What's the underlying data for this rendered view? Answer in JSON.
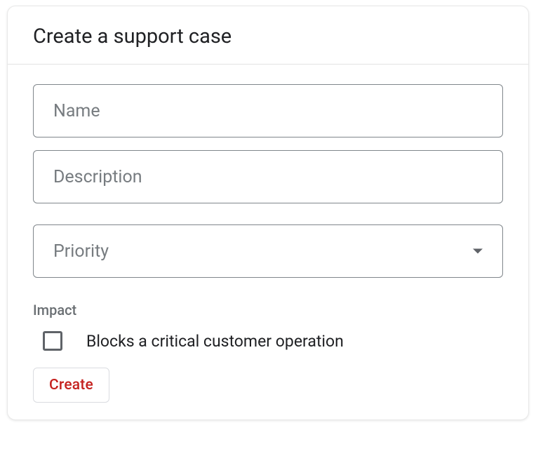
{
  "header": {
    "title": "Create a support case"
  },
  "form": {
    "name": {
      "placeholder": "Name",
      "value": ""
    },
    "description": {
      "placeholder": "Description",
      "value": ""
    },
    "priority": {
      "placeholder": "Priority",
      "selected": ""
    },
    "impact": {
      "section_label": "Impact",
      "checkbox_label": "Blocks a critical customer operation",
      "checked": false
    },
    "submit_label": "Create"
  },
  "colors": {
    "border": "#80868b",
    "placeholder": "#777c80",
    "text": "#202124",
    "section_label": "#6a6f73",
    "button_text": "#c5221f",
    "divider": "#e3e3e3",
    "card_border": "#e8e8e8"
  }
}
